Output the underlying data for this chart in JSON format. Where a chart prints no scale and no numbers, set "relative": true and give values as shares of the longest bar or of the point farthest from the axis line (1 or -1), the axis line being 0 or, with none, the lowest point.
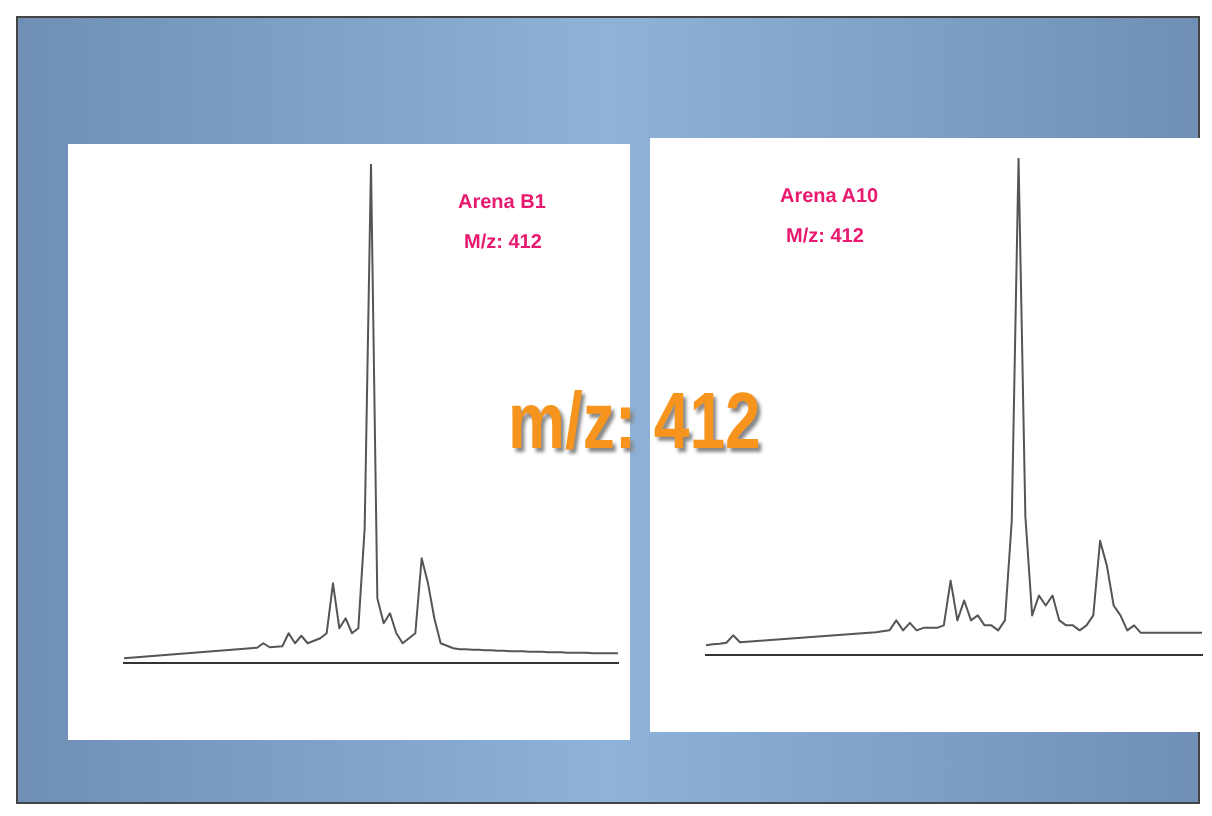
{
  "chart_data": [
    {
      "type": "line",
      "relative": true,
      "annotations": [
        "Arena B1",
        "M/z: 412"
      ],
      "categories": [
        null,
        null,
        null,
        null,
        null,
        null,
        null,
        null,
        null,
        null,
        null,
        null,
        null,
        null,
        null,
        null,
        null,
        null,
        null,
        null,
        null,
        null,
        null,
        null,
        null,
        null,
        null,
        null,
        null,
        null,
        null,
        null,
        null,
        null,
        null,
        null,
        null,
        null,
        null,
        null,
        null,
        null,
        null,
        null,
        null,
        null,
        null,
        null,
        null,
        null,
        null,
        null,
        null,
        null,
        null,
        null,
        null,
        null,
        null,
        null,
        null,
        null,
        null,
        null,
        null,
        null,
        null,
        null,
        null,
        null,
        null,
        null,
        null,
        null,
        null,
        null,
        null,
        null,
        null
      ],
      "series": [
        {
          "color": "#555555",
          "values": [
            0.01,
            0.011,
            0.012,
            0.013,
            0.014,
            0.015,
            0.016,
            0.017,
            0.018,
            0.019,
            0.02,
            0.021,
            0.022,
            0.023,
            0.024,
            0.025,
            0.026,
            0.027,
            0.028,
            0.029,
            0.03,
            0.031,
            0.04,
            0.032,
            0.033,
            0.034,
            0.06,
            0.04,
            0.055,
            0.04,
            0.045,
            0.05,
            0.06,
            0.16,
            0.07,
            0.09,
            0.06,
            0.07,
            0.27,
            1.0,
            0.13,
            0.08,
            0.1,
            0.06,
            0.04,
            0.05,
            0.06,
            0.21,
            0.16,
            0.09,
            0.04,
            0.035,
            0.03,
            0.028,
            0.028,
            0.027,
            0.027,
            0.026,
            0.026,
            0.025,
            0.025,
            0.024,
            0.024,
            0.024,
            0.023,
            0.023,
            0.023,
            0.022,
            0.022,
            0.022,
            0.021,
            0.021,
            0.021,
            0.021,
            0.02,
            0.02,
            0.02,
            0.02,
            0.02
          ]
        }
      ],
      "marker": "none",
      "grid": false,
      "legend": false
    },
    {
      "type": "line",
      "relative": true,
      "annotations": [
        "Arena A10",
        "M/z: 412"
      ],
      "categories": [
        null,
        null,
        null,
        null,
        null,
        null,
        null,
        null,
        null,
        null,
        null,
        null,
        null,
        null,
        null,
        null,
        null,
        null,
        null,
        null,
        null,
        null,
        null,
        null,
        null,
        null,
        null,
        null,
        null,
        null,
        null,
        null,
        null,
        null,
        null,
        null,
        null,
        null,
        null,
        null,
        null,
        null,
        null,
        null,
        null,
        null,
        null,
        null,
        null,
        null,
        null,
        null,
        null,
        null,
        null,
        null,
        null,
        null,
        null,
        null,
        null,
        null,
        null,
        null,
        null,
        null,
        null,
        null,
        null,
        null,
        null,
        null,
        null,
        null
      ],
      "series": [
        {
          "color": "#555555",
          "values": [
            0.02,
            0.022,
            0.023,
            0.025,
            0.04,
            0.026,
            0.027,
            0.028,
            0.029,
            0.03,
            0.031,
            0.032,
            0.033,
            0.034,
            0.035,
            0.036,
            0.037,
            0.038,
            0.039,
            0.04,
            0.041,
            0.042,
            0.043,
            0.044,
            0.045,
            0.046,
            0.048,
            0.05,
            0.07,
            0.05,
            0.065,
            0.05,
            0.055,
            0.055,
            0.055,
            0.06,
            0.15,
            0.07,
            0.11,
            0.07,
            0.08,
            0.06,
            0.06,
            0.05,
            0.07,
            0.27,
            1.0,
            0.28,
            0.08,
            0.12,
            0.1,
            0.12,
            0.07,
            0.06,
            0.06,
            0.05,
            0.06,
            0.08,
            0.23,
            0.18,
            0.1,
            0.08,
            0.05,
            0.06,
            0.045,
            0.045,
            0.045,
            0.045,
            0.045,
            0.045,
            0.045,
            0.045,
            0.045,
            0.045
          ]
        }
      ],
      "marker": "none",
      "grid": false,
      "legend": false
    },
    {
      "type": "other",
      "title": "m/z: 412"
    }
  ]
}
